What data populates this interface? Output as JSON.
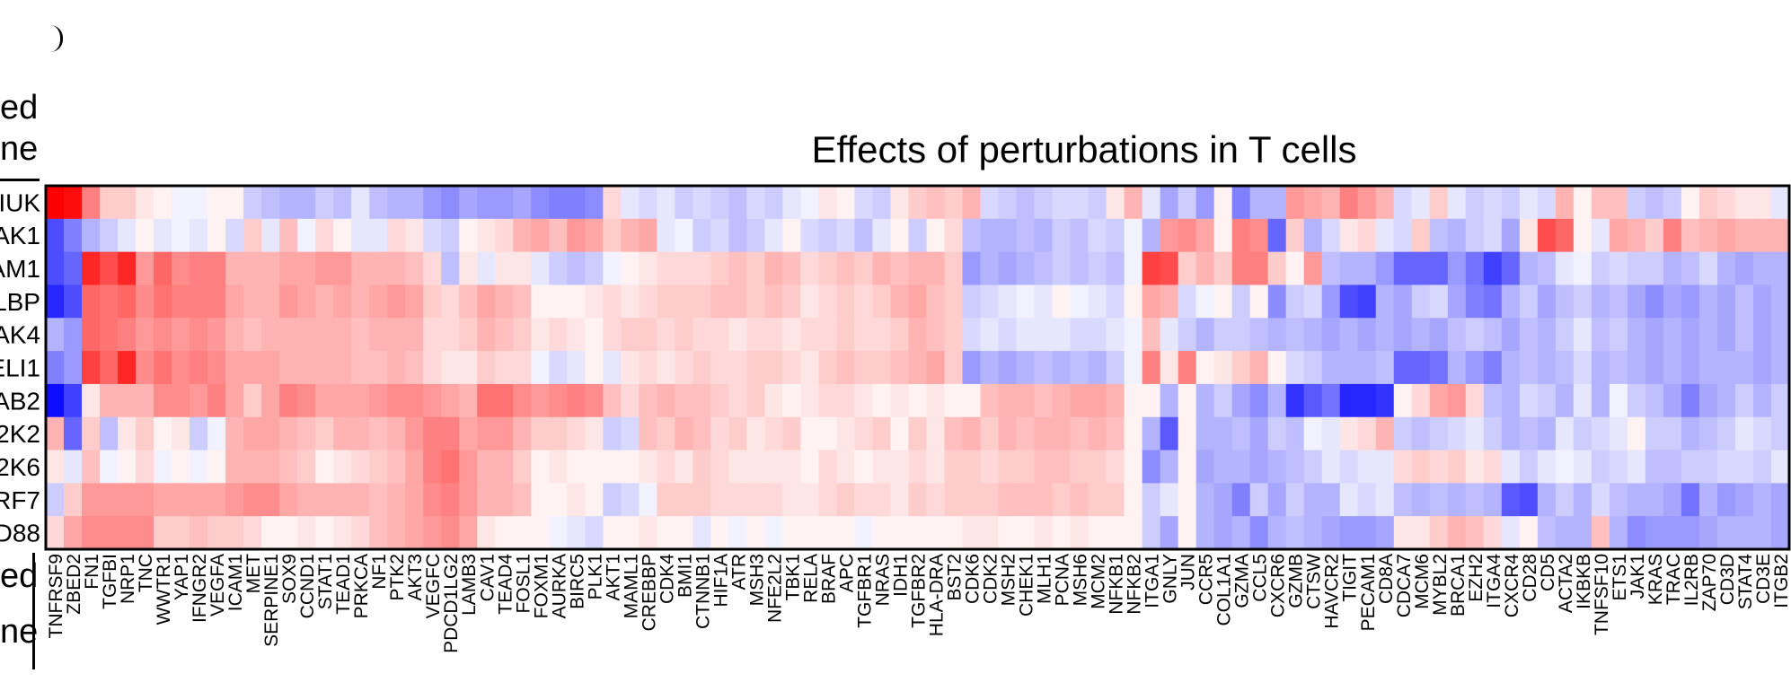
{
  "left_labels": {
    "top_line1": "ed",
    "top_line2": "ne",
    "bottom_line1": "ed",
    "bottom_line2": "ne"
  },
  "chart_data": {
    "type": "heatmap",
    "title": "Effects of perturbations in T cells",
    "row_labels": [
      "IUK",
      "AK1",
      "AM1",
      "LBP",
      "AK4",
      "ELI1",
      "AB2",
      "2K2",
      "2K6",
      "RF7",
      "D88"
    ],
    "column_labels": [
      "TNFRSF9",
      "ZBED2",
      "FN1",
      "TGFBI",
      "NRP1",
      "TNC",
      "WWTR1",
      "YAP1",
      "IFNGR2",
      "VEGFA",
      "ICAM1",
      "MET",
      "SERPINE1",
      "SOX9",
      "CCND1",
      "STAT1",
      "TEAD1",
      "PRKCA",
      "NF1",
      "PTK2",
      "AKT3",
      "VEGFC",
      "PDCD1LG2",
      "LAMB3",
      "CAV1",
      "TEAD4",
      "FOSL1",
      "FOXM1",
      "AURKA",
      "BIRC5",
      "PLK1",
      "AKT1",
      "MAML1",
      "CREBBP",
      "CDK4",
      "BMI1",
      "CTNNB1",
      "HIF1A",
      "ATR",
      "MSH3",
      "NFE2L2",
      "TBK1",
      "RELA",
      "BRAF",
      "APC",
      "TGFBR1",
      "NRAS",
      "IDH1",
      "TGFBR2",
      "HLA-DRA",
      "BST2",
      "CDK6",
      "CDK2",
      "MSH2",
      "CHEK1",
      "MLH1",
      "PCNA",
      "MSH6",
      "MCM2",
      "NFKB1",
      "NFKB2",
      "ITGA1",
      "GNLY",
      "JUN",
      "CCR5",
      "COL1A1",
      "GZMA",
      "CCL5",
      "CXCR6",
      "GZMB",
      "CTSW",
      "HAVCR2",
      "TIGIT",
      "PECAM1",
      "CD8A",
      "CDCA7",
      "MCM6",
      "MYBL2",
      "BRCA1",
      "EZH2",
      "ITGA4",
      "CXCR4",
      "CD28",
      "CD5",
      "ACTA2",
      "IKBKB",
      "TNFSF10",
      "ETS1",
      "JAK1",
      "KRAS",
      "TRAC",
      "IL2RB",
      "ZAP70",
      "CD3D",
      "STAT4",
      "CD3E",
      "ITGB2"
    ],
    "colors": {
      "negative": "#0000ff",
      "neutral": "#ffffff",
      "positive": "#ff0000"
    },
    "value_range": [
      -1,
      1
    ],
    "values": [
      [
        1,
        0.95,
        0.5,
        0.2,
        0.2,
        0.1,
        0.05,
        -0.05,
        -0.05,
        0.05,
        0.05,
        -0.2,
        -0.25,
        -0.3,
        -0.3,
        -0.2,
        -0.25,
        -0.1,
        -0.25,
        -0.3,
        -0.3,
        -0.4,
        -0.45,
        -0.35,
        -0.4,
        -0.4,
        -0.35,
        -0.45,
        -0.5,
        -0.5,
        -0.45,
        0.15,
        -0.1,
        -0.15,
        -0.1,
        -0.2,
        -0.15,
        -0.2,
        -0.25,
        -0.15,
        -0.2,
        -0.1,
        -0.05,
        0.1,
        0.05,
        -0.15,
        -0.2,
        0.1,
        0.2,
        0.25,
        0.2,
        0.3,
        -0.15,
        -0.2,
        -0.25,
        -0.2,
        -0.15,
        -0.15,
        -0.2,
        0.1,
        0.3,
        -0.1,
        -0.35,
        -0.2,
        -0.4,
        0.05,
        -0.5,
        -0.3,
        -0.3,
        0.4,
        0.35,
        0.3,
        0.5,
        0.4,
        0.3,
        -0.15,
        -0.1,
        0.2,
        -0.1,
        -0.2,
        -0.15,
        -0.2,
        -0.1,
        -0.15,
        0.3,
        0.05,
        0.25,
        0.25,
        -0.2,
        -0.25,
        -0.2,
        0.05,
        0.2,
        0.15,
        0.1,
        0.1,
        -0.1
      ],
      [
        -0.7,
        -0.5,
        -0.3,
        -0.2,
        -0.1,
        0.05,
        -0.1,
        -0.05,
        -0.1,
        0.05,
        -0.15,
        0.2,
        -0.1,
        0.25,
        -0.05,
        0.15,
        0.05,
        -0.1,
        -0.1,
        0.15,
        0.1,
        -0.15,
        -0.2,
        0.05,
        0.1,
        0.15,
        0.3,
        0.35,
        0.25,
        0.4,
        0.35,
        0.2,
        0.3,
        0.35,
        -0.1,
        -0.05,
        -0.2,
        -0.15,
        -0.25,
        -0.2,
        -0.1,
        0.05,
        -0.15,
        -0.2,
        -0.15,
        -0.25,
        -0.1,
        0.05,
        -0.2,
        0.05,
        0.15,
        -0.25,
        -0.3,
        -0.3,
        -0.25,
        -0.3,
        -0.2,
        -0.25,
        -0.15,
        -0.2,
        -0.05,
        -0.3,
        0.4,
        0.45,
        0.35,
        0.05,
        0.5,
        0.45,
        -0.6,
        0.2,
        -0.3,
        -0.15,
        0.1,
        0.15,
        -0.1,
        -0.15,
        0.2,
        -0.25,
        -0.3,
        -0.2,
        -0.15,
        -0.35,
        0.1,
        0.7,
        0.6,
        0.05,
        -0.1,
        0.35,
        0.3,
        0.2,
        0.5,
        0.25,
        0.3,
        0.35,
        0.3,
        0.3,
        0.3
      ],
      [
        -0.7,
        -0.6,
        0.85,
        0.7,
        0.85,
        0.4,
        0.6,
        0.45,
        0.5,
        0.5,
        0.3,
        0.3,
        0.3,
        0.35,
        0.35,
        0.4,
        0.4,
        0.3,
        0.3,
        0.3,
        0.25,
        0.15,
        -0.25,
        0.1,
        -0.1,
        0.1,
        0.1,
        -0.1,
        -0.2,
        -0.25,
        -0.2,
        -0.05,
        0.05,
        0.1,
        0.15,
        0.15,
        0.15,
        0.2,
        0.25,
        0.2,
        0.3,
        0.25,
        0.15,
        0.2,
        0.25,
        0.2,
        0.3,
        0.25,
        0.3,
        0.3,
        0.2,
        -0.4,
        -0.3,
        -0.35,
        -0.3,
        -0.25,
        -0.2,
        -0.25,
        -0.2,
        -0.25,
        -0.05,
        0.75,
        0.7,
        0.2,
        0.3,
        0.2,
        0.5,
        0.5,
        0.2,
        0.05,
        0.4,
        -0.25,
        -0.3,
        -0.3,
        -0.4,
        -0.6,
        -0.6,
        -0.6,
        -0.4,
        -0.55,
        -0.75,
        -0.6,
        -0.3,
        -0.25,
        -0.1,
        -0.05,
        -0.2,
        -0.15,
        -0.2,
        -0.2,
        -0.3,
        -0.25,
        -0.15,
        -0.3,
        -0.35,
        -0.3,
        -0.3
      ],
      [
        -0.85,
        -0.7,
        0.6,
        0.55,
        0.6,
        0.45,
        0.55,
        0.5,
        0.5,
        0.5,
        0.35,
        0.3,
        0.3,
        0.4,
        0.35,
        0.3,
        0.35,
        0.3,
        0.35,
        0.4,
        0.35,
        0.2,
        0.15,
        0.25,
        0.35,
        0.3,
        0.25,
        0.05,
        0.05,
        0.05,
        0.1,
        0.15,
        0.1,
        0.15,
        0.2,
        0.2,
        0.2,
        0.25,
        0.25,
        0.2,
        0.25,
        0.2,
        0.1,
        0.15,
        0.2,
        0.15,
        0.2,
        0.3,
        0.35,
        0.25,
        0.2,
        -0.2,
        -0.15,
        -0.1,
        -0.05,
        -0.1,
        0.05,
        -0.05,
        -0.1,
        -0.15,
        0.05,
        0.35,
        0.3,
        -0.15,
        -0.05,
        0.05,
        -0.2,
        0.05,
        -0.45,
        -0.2,
        -0.15,
        -0.4,
        -0.7,
        -0.75,
        -0.3,
        -0.35,
        -0.2,
        -0.15,
        -0.35,
        -0.5,
        -0.55,
        -0.3,
        -0.2,
        -0.35,
        -0.25,
        -0.2,
        -0.3,
        -0.25,
        -0.35,
        -0.45,
        -0.35,
        -0.4,
        -0.3,
        -0.35,
        -0.25,
        -0.35,
        -0.3
      ],
      [
        -0.3,
        -0.4,
        0.6,
        0.55,
        0.5,
        0.4,
        0.45,
        0.4,
        0.45,
        0.4,
        0.3,
        0.25,
        0.3,
        0.3,
        0.3,
        0.3,
        0.3,
        0.25,
        0.3,
        0.3,
        0.3,
        0.15,
        0.15,
        0.2,
        0.3,
        0.25,
        0.2,
        0.1,
        0.15,
        0.1,
        0.05,
        0.15,
        0.2,
        0.2,
        0.15,
        0.2,
        0.15,
        0.15,
        0.1,
        0.15,
        0.15,
        0.1,
        0.15,
        0.15,
        0.2,
        0.15,
        0.15,
        0.2,
        0.3,
        0.25,
        0.2,
        -0.15,
        -0.1,
        -0.15,
        -0.1,
        -0.1,
        -0.1,
        -0.15,
        -0.15,
        -0.1,
        -0.05,
        0.25,
        -0.1,
        -0.2,
        -0.3,
        -0.2,
        -0.2,
        -0.25,
        -0.3,
        -0.25,
        -0.3,
        -0.35,
        -0.3,
        -0.35,
        -0.3,
        -0.35,
        -0.3,
        -0.35,
        -0.25,
        -0.2,
        -0.25,
        -0.35,
        -0.25,
        -0.3,
        -0.2,
        -0.1,
        -0.25,
        -0.2,
        -0.3,
        -0.35,
        -0.3,
        -0.35,
        -0.3,
        -0.35,
        -0.25,
        -0.35,
        -0.3
      ],
      [
        -0.5,
        -0.4,
        0.75,
        0.6,
        0.85,
        0.45,
        0.55,
        0.45,
        0.5,
        0.45,
        0.35,
        0.35,
        0.35,
        0.3,
        0.3,
        0.3,
        0.3,
        0.25,
        0.25,
        0.3,
        0.25,
        0.15,
        0.1,
        0.1,
        0.2,
        0.15,
        0.15,
        -0.05,
        -0.15,
        -0.1,
        0.05,
        -0.1,
        0.1,
        0.15,
        0.1,
        0.15,
        0.2,
        0.15,
        0.15,
        0.2,
        0.2,
        0.15,
        0.1,
        0.2,
        0.25,
        0.2,
        0.2,
        0.25,
        0.3,
        0.35,
        0.2,
        -0.4,
        -0.3,
        -0.35,
        -0.3,
        -0.25,
        -0.3,
        -0.25,
        -0.3,
        -0.2,
        -0.05,
        0.5,
        0.1,
        0.5,
        0.05,
        0.1,
        0.2,
        0.3,
        0.05,
        -0.15,
        -0.2,
        -0.3,
        -0.3,
        -0.3,
        -0.25,
        -0.6,
        -0.6,
        -0.55,
        -0.3,
        -0.4,
        -0.5,
        -0.3,
        -0.25,
        -0.3,
        -0.25,
        -0.15,
        -0.3,
        -0.25,
        -0.3,
        -0.35,
        -0.3,
        -0.35,
        -0.3,
        -0.3,
        -0.3,
        -0.35,
        -0.3
      ],
      [
        -0.95,
        -0.75,
        0.1,
        0.3,
        0.3,
        0.3,
        0.45,
        0.45,
        0.4,
        0.5,
        0.35,
        0.2,
        0.35,
        0.5,
        0.45,
        0.35,
        0.35,
        0.35,
        0.4,
        0.45,
        0.45,
        0.4,
        0.35,
        0.3,
        0.55,
        0.55,
        0.45,
        0.4,
        0.45,
        0.5,
        0.45,
        0.25,
        0.15,
        0.25,
        0.3,
        0.25,
        0.25,
        0.2,
        0.15,
        0.2,
        0.1,
        0.05,
        0.1,
        0.15,
        0.15,
        0.1,
        0.05,
        0.1,
        0.05,
        0.1,
        0.05,
        0.05,
        0.25,
        0.3,
        0.3,
        0.25,
        0.3,
        0.35,
        0.35,
        0.3,
        0.05,
        0.05,
        -0.3,
        0.05,
        -0.3,
        -0.2,
        -0.35,
        -0.45,
        -0.3,
        -0.8,
        -0.65,
        -0.55,
        -0.85,
        -0.85,
        -0.8,
        0.05,
        0.15,
        0.35,
        0.4,
        0.15,
        -0.25,
        -0.3,
        -0.15,
        -0.2,
        -0.3,
        -0.1,
        -0.3,
        -0.05,
        -0.2,
        -0.25,
        -0.35,
        -0.5,
        -0.35,
        -0.3,
        -0.2,
        -0.3,
        -0.2
      ],
      [
        0.3,
        -0.6,
        0.2,
        -0.25,
        0.1,
        0.2,
        0.05,
        0.1,
        -0.2,
        -0.05,
        0.3,
        0.35,
        0.35,
        0.3,
        0.25,
        0.2,
        0.3,
        0.3,
        0.25,
        0.3,
        0.4,
        0.5,
        0.5,
        0.35,
        0.4,
        0.4,
        0.3,
        0.2,
        0.2,
        0.15,
        0.1,
        -0.2,
        -0.15,
        0.25,
        0.2,
        0.3,
        0.25,
        0.15,
        0.2,
        0.1,
        0.15,
        0.2,
        0.05,
        0.05,
        0.1,
        0.15,
        0.2,
        0.05,
        0.2,
        0.1,
        0.25,
        0.3,
        0.2,
        0.3,
        0.25,
        0.3,
        0.3,
        0.25,
        0.3,
        0.25,
        0.05,
        -0.3,
        -0.65,
        0.05,
        -0.3,
        -0.3,
        -0.25,
        -0.35,
        -0.2,
        -0.25,
        -0.05,
        -0.1,
        0.1,
        0.15,
        0.3,
        -0.2,
        -0.25,
        -0.2,
        -0.15,
        -0.1,
        -0.2,
        -0.3,
        -0.25,
        -0.3,
        -0.1,
        -0.2,
        -0.15,
        -0.1,
        0.05,
        -0.2,
        -0.2,
        -0.3,
        -0.25,
        -0.2,
        -0.1,
        -0.15,
        -0.2
      ],
      [
        0.1,
        -0.1,
        0.25,
        -0.05,
        0.05,
        0.15,
        -0.05,
        0.05,
        -0.05,
        0.05,
        0.3,
        0.3,
        0.3,
        0.25,
        0.2,
        0.05,
        0.1,
        0.15,
        0.2,
        0.25,
        0.35,
        0.5,
        0.55,
        0.4,
        0.3,
        0.3,
        0.2,
        0.05,
        0.1,
        0.05,
        0.05,
        0.05,
        0.05,
        0.1,
        0.15,
        0.1,
        0.2,
        0.15,
        0.1,
        0.1,
        0.1,
        0.1,
        0.05,
        0.15,
        0.1,
        0.05,
        0.1,
        0.1,
        0.15,
        0.1,
        0.2,
        0.2,
        0.15,
        0.2,
        0.2,
        0.25,
        0.25,
        0.2,
        0.2,
        0.15,
        0.05,
        -0.45,
        -0.3,
        0.05,
        -0.35,
        -0.3,
        -0.3,
        -0.35,
        -0.3,
        -0.25,
        -0.2,
        -0.1,
        -0.15,
        -0.1,
        -0.1,
        0.15,
        0.2,
        0.15,
        0.2,
        0.1,
        0.15,
        -0.1,
        -0.2,
        -0.1,
        -0.05,
        -0.1,
        -0.2,
        -0.15,
        -0.1,
        -0.25,
        -0.25,
        -0.2,
        -0.2,
        -0.15,
        -0.15,
        -0.2,
        -0.1
      ],
      [
        -0.2,
        0.2,
        0.4,
        0.4,
        0.4,
        0.4,
        0.35,
        0.35,
        0.35,
        0.35,
        0.4,
        0.45,
        0.45,
        0.35,
        0.3,
        0.3,
        0.3,
        0.3,
        0.25,
        0.3,
        0.35,
        0.45,
        0.5,
        0.4,
        0.3,
        0.3,
        0.25,
        0.05,
        0.05,
        0.1,
        0.05,
        -0.2,
        -0.15,
        -0.05,
        0.2,
        0.2,
        0.2,
        0.15,
        0.15,
        0.15,
        0.15,
        0.1,
        0.1,
        0.15,
        0.2,
        0.15,
        0.15,
        0.1,
        0.2,
        0.15,
        0.2,
        0.2,
        0.2,
        0.25,
        0.25,
        0.25,
        0.2,
        0.25,
        0.2,
        0.2,
        0.05,
        -0.2,
        -0.1,
        0.05,
        -0.3,
        -0.35,
        -0.5,
        -0.2,
        -0.35,
        -0.2,
        -0.3,
        -0.3,
        -0.1,
        -0.15,
        -0.1,
        -0.25,
        -0.3,
        -0.25,
        -0.3,
        -0.25,
        -0.3,
        -0.65,
        -0.7,
        -0.3,
        -0.2,
        -0.3,
        -0.15,
        -0.25,
        -0.3,
        -0.3,
        -0.35,
        -0.55,
        -0.3,
        -0.4,
        -0.35,
        -0.3,
        -0.35
      ],
      [
        0.15,
        0.35,
        0.45,
        0.45,
        0.45,
        0.45,
        0.2,
        0.2,
        0.25,
        0.2,
        0.2,
        0.15,
        0.05,
        0.05,
        0.1,
        0.05,
        0.1,
        0.15,
        0.25,
        0.3,
        0.35,
        0.4,
        0.45,
        0.35,
        0.1,
        0.05,
        0.05,
        0.05,
        -0.05,
        -0.1,
        -0.15,
        0.05,
        0.05,
        0.1,
        0.05,
        0.05,
        -0.1,
        0.05,
        -0.05,
        0.05,
        -0.05,
        0.05,
        0.05,
        0.05,
        0.05,
        -0.05,
        0.05,
        0.05,
        0.05,
        0.05,
        0.05,
        0.1,
        0.1,
        0.05,
        0.05,
        0.1,
        0.05,
        0.1,
        0.05,
        0.05,
        0.05,
        -0.2,
        -0.35,
        0.05,
        -0.3,
        -0.35,
        -0.3,
        -0.45,
        -0.3,
        -0.25,
        -0.3,
        -0.35,
        -0.4,
        -0.4,
        -0.35,
        0.1,
        0.1,
        0.2,
        0.3,
        0.25,
        0.15,
        -0.1,
        0.05,
        -0.25,
        -0.3,
        -0.3,
        0.25,
        -0.3,
        -0.45,
        -0.4,
        -0.4,
        -0.4,
        -0.35,
        -0.3,
        -0.3,
        -0.3,
        -0.35
      ]
    ]
  }
}
